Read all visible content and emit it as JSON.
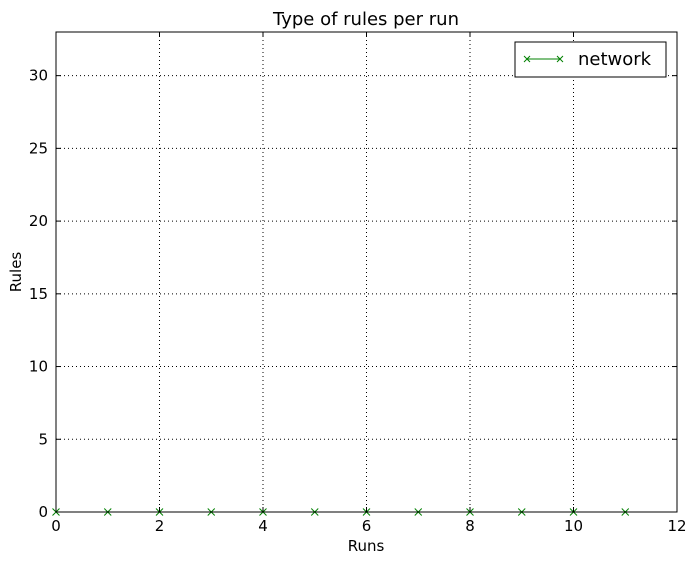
{
  "chart_data": {
    "type": "line",
    "title": "Type of rules per run",
    "xlabel": "Runs",
    "ylabel": "Rules",
    "xlim": [
      0,
      12
    ],
    "ylim": [
      0,
      33
    ],
    "xticks": [
      0,
      2,
      4,
      6,
      8,
      10,
      12
    ],
    "yticks": [
      0,
      5,
      10,
      15,
      20,
      25,
      30
    ],
    "xtick_labels": [
      "0",
      "2",
      "4",
      "6",
      "8",
      "10",
      "12"
    ],
    "ytick_labels": [
      "0",
      "5",
      "10",
      "15",
      "20",
      "25",
      "30"
    ],
    "grid": true,
    "legend_position": "top-right",
    "series": [
      {
        "name": "network",
        "color": "#008000",
        "marker": "x",
        "x": [
          0,
          1,
          2,
          3,
          4,
          5,
          6,
          7,
          8,
          9,
          10,
          11
        ],
        "y": [
          0,
          0,
          0,
          0,
          0,
          0,
          0,
          0,
          0,
          0,
          0,
          0
        ]
      }
    ]
  }
}
